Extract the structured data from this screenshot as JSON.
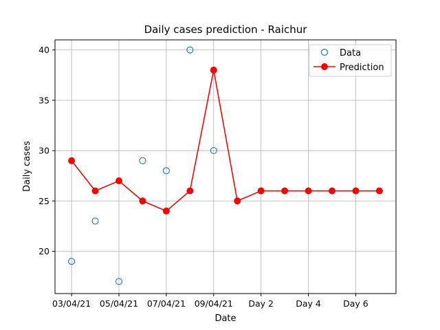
{
  "chart_data": {
    "type": "line",
    "title": "Daily cases prediction - Raichur",
    "xlabel": "Date",
    "ylabel": "Daily cases",
    "x_tick_labels": [
      "03/04/21",
      "05/04/21",
      "07/04/21",
      "09/04/21",
      "Day 2",
      "Day 4",
      "Day 6"
    ],
    "x_tick_positions": [
      0,
      2,
      4,
      6,
      8,
      10,
      12
    ],
    "xlim": [
      -0.7,
      13.7
    ],
    "ylim": [
      15.8,
      41.0
    ],
    "y_ticks": [
      20,
      25,
      30,
      35,
      40
    ],
    "grid": true,
    "legend_position": "top-right",
    "series": [
      {
        "name": "Data",
        "style": "open-circle-markers",
        "color": "#1f77b4",
        "x": [
          0,
          1,
          2,
          3,
          4,
          5,
          6
        ],
        "y": [
          19,
          23,
          17,
          29,
          28,
          40,
          30
        ]
      },
      {
        "name": "Prediction",
        "style": "line-with-filled-markers",
        "color": "#ff0000",
        "x": [
          0,
          1,
          2,
          3,
          4,
          5,
          6,
          7,
          8,
          9,
          10,
          11,
          12,
          13
        ],
        "y": [
          29,
          26,
          27,
          25,
          24,
          26,
          38,
          25,
          26,
          26,
          26,
          26,
          26,
          26
        ]
      }
    ]
  }
}
